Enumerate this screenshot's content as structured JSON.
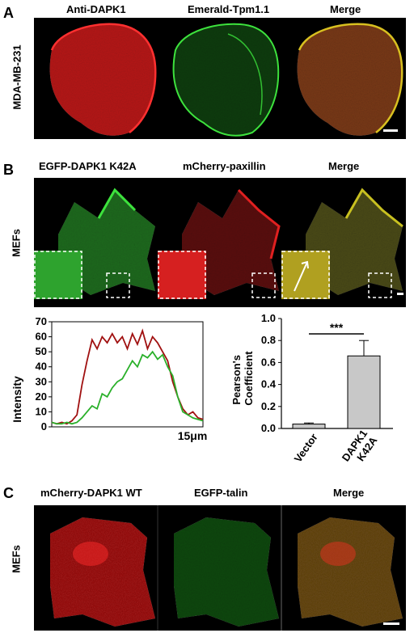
{
  "panel_a": {
    "letter": "A",
    "row_label": "MDA-MB-231",
    "columns": [
      "Anti-DAPK1",
      "Emerald-Tpm1.1",
      "Merge"
    ]
  },
  "panel_b": {
    "letter": "B",
    "row_label": "MEFs",
    "columns": [
      "EGFP-DAPK1 K42A",
      "mCherry-paxillin",
      "Merge"
    ]
  },
  "panel_c": {
    "letter": "C",
    "row_label": "MEFs",
    "columns": [
      "mCherry-DAPK1 WT",
      "EGFP-talin",
      "Merge"
    ]
  },
  "colors": {
    "red": "#d42020",
    "green": "#1fb01f",
    "merge": "#c9a030"
  },
  "chart_data": [
    {
      "type": "line",
      "ylabel": "Intensity",
      "xlabel": "15μm",
      "ylim": [
        0,
        70
      ],
      "yticks": [
        0,
        10,
        20,
        30,
        40,
        50,
        60,
        70
      ],
      "x": [
        0,
        1,
        2,
        3,
        4,
        5,
        6,
        7,
        8,
        9,
        10,
        11,
        12,
        13,
        14,
        15,
        16,
        17,
        18,
        19,
        20,
        21,
        22,
        23,
        24,
        25,
        26,
        27,
        28,
        29,
        30
      ],
      "series": [
        {
          "color": "#a01010",
          "values": [
            3,
            2,
            3,
            2,
            4,
            8,
            28,
            44,
            58,
            52,
            60,
            56,
            62,
            56,
            60,
            52,
            62,
            55,
            64,
            52,
            60,
            56,
            50,
            44,
            30,
            20,
            12,
            8,
            10,
            6,
            5
          ]
        },
        {
          "color": "#2ab02a",
          "values": [
            3,
            2,
            2,
            3,
            2,
            3,
            6,
            10,
            14,
            12,
            22,
            20,
            26,
            30,
            32,
            38,
            44,
            40,
            48,
            46,
            50,
            45,
            48,
            40,
            34,
            20,
            10,
            8,
            6,
            5,
            4
          ]
        }
      ]
    },
    {
      "type": "bar",
      "ylabel": "Pearson's Coefficient",
      "ylim": [
        0,
        1.0
      ],
      "yticks": [
        "0.0",
        "0.2",
        "0.4",
        "0.6",
        "0.8",
        "1.0"
      ],
      "categories": [
        "Vector",
        "DAPK1 K42A"
      ],
      "category_lines": [
        [
          "Vector"
        ],
        [
          "DAPK1",
          "K42A"
        ]
      ],
      "values": [
        0.04,
        0.66
      ],
      "errors": [
        0.01,
        0.14
      ],
      "significance": "***"
    }
  ]
}
